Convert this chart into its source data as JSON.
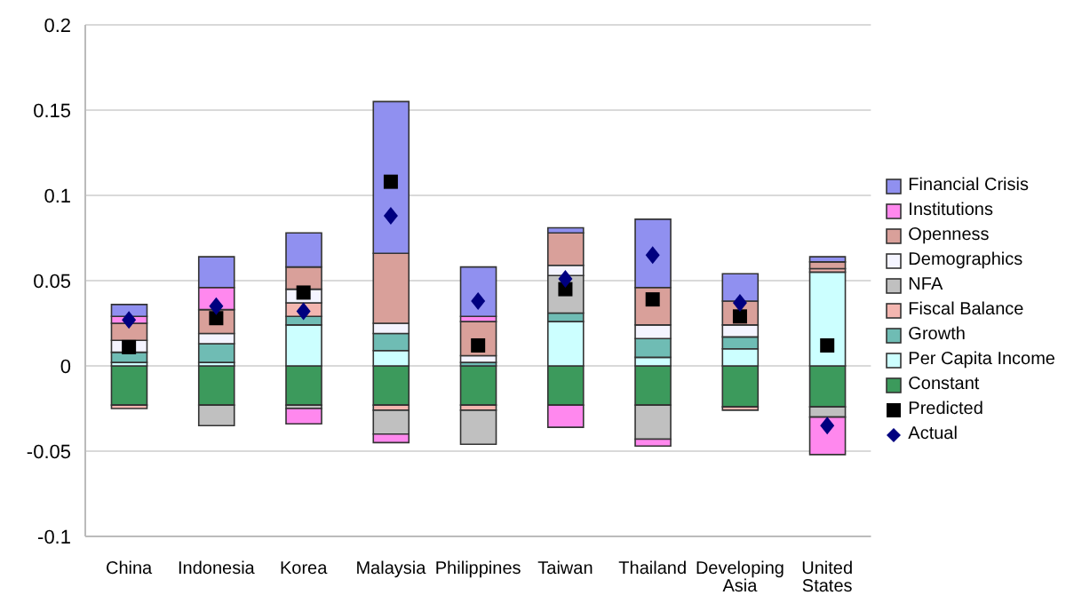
{
  "chart_data": {
    "type": "bar",
    "stacked": true,
    "categories": [
      "China",
      "Indonesia",
      "Korea",
      "Malaysia",
      "Philippines",
      "Taiwan",
      "Thailand",
      "Developing Asia",
      "United States"
    ],
    "series": [
      {
        "name": "Constant",
        "color": "#3c9a5c",
        "values": [
          -0.023,
          -0.023,
          -0.023,
          -0.023,
          -0.023,
          -0.023,
          -0.023,
          -0.024,
          -0.024
        ]
      },
      {
        "name": "Per Capita Income",
        "color": "#ccffff",
        "values": [
          0.002,
          0.002,
          0.024,
          0.009,
          null,
          0.026,
          0.005,
          0.01,
          0.055
        ]
      },
      {
        "name": "Growth",
        "color": "#6fbcb4",
        "values": [
          0.006,
          0.011,
          0.005,
          0.01,
          0.002,
          0.005,
          0.011,
          0.007,
          null
        ]
      },
      {
        "name": "Fiscal Balance",
        "color": "#f4b6b0",
        "values": [
          -0.002,
          null,
          0.008,
          -0.003,
          -0.003,
          null,
          null,
          -0.002,
          0.002
        ]
      },
      {
        "name": "NFA",
        "color": "#c0c0c0",
        "values": [
          null,
          -0.012,
          -0.002,
          -0.014,
          -0.02,
          0.022,
          -0.02,
          null,
          -0.006
        ]
      },
      {
        "name": "Demographics",
        "color": "#f4f4ff",
        "values": [
          0.007,
          0.006,
          0.008,
          0.006,
          0.004,
          0.006,
          0.008,
          0.007,
          null
        ]
      },
      {
        "name": "Openness",
        "color": "#d9a09a",
        "values": [
          0.01,
          0.014,
          0.013,
          0.041,
          0.02,
          0.019,
          0.022,
          0.014,
          0.004
        ]
      },
      {
        "name": "Institutions",
        "color": "#ff88ee",
        "values": [
          0.004,
          0.013,
          -0.009,
          -0.005,
          0.003,
          -0.013,
          -0.004,
          null,
          -0.022
        ]
      },
      {
        "name": "Financial Crisis",
        "color": "#9090f0",
        "values": [
          0.007,
          0.018,
          0.02,
          0.089,
          0.029,
          0.003,
          0.04,
          0.016,
          0.003
        ]
      },
      {
        "name": "Predicted",
        "type": "scatter",
        "marker": "square",
        "color": "#000000",
        "values": [
          0.011,
          0.028,
          0.043,
          0.108,
          0.012,
          0.045,
          0.039,
          0.029,
          0.012
        ]
      },
      {
        "name": "Actual",
        "type": "scatter",
        "marker": "diamond",
        "color": "#000080",
        "values": [
          0.027,
          0.035,
          0.032,
          0.088,
          0.038,
          0.051,
          0.065,
          0.037,
          -0.035
        ]
      }
    ],
    "ylim": [
      -0.1,
      0.2
    ],
    "yticks": [
      -0.1,
      -0.05,
      0,
      0.05,
      0.1,
      0.15,
      0.2
    ],
    "grid": "y",
    "legend": "right"
  }
}
